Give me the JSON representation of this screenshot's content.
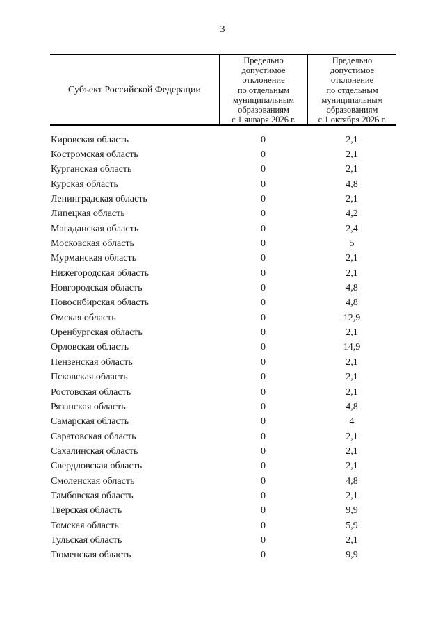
{
  "page_number": "3",
  "table": {
    "header": {
      "region": "Субъект Российской Федерации",
      "january": "Предельно\nдопустимое\nотклонение\nпо отдельным\nмуниципальным\nобразованиям\nс 1 января 2026 г.",
      "october": "Предельно\nдопустимое\nотклонение\nпо отдельным\nмуниципальным\nобразованиям\nс 1 октября 2026 г."
    },
    "rows": [
      {
        "region": "Кировская область",
        "january": "0",
        "october": "2,1"
      },
      {
        "region": "Костромская область",
        "january": "0",
        "october": "2,1"
      },
      {
        "region": "Курганская область",
        "january": "0",
        "october": "2,1"
      },
      {
        "region": "Курская область",
        "january": "0",
        "october": "4,8"
      },
      {
        "region": "Ленинградская область",
        "january": "0",
        "october": "2,1"
      },
      {
        "region": "Липецкая область",
        "january": "0",
        "october": "4,2"
      },
      {
        "region": "Магаданская область",
        "january": "0",
        "october": "2,4"
      },
      {
        "region": "Московская область",
        "january": "0",
        "october": "5"
      },
      {
        "region": "Мурманская область",
        "january": "0",
        "october": "2,1"
      },
      {
        "region": "Нижегородская область",
        "january": "0",
        "october": "2,1"
      },
      {
        "region": "Новгородская область",
        "january": "0",
        "october": "4,8"
      },
      {
        "region": "Новосибирская область",
        "january": "0",
        "october": "4,8"
      },
      {
        "region": "Омская область",
        "january": "0",
        "october": "12,9"
      },
      {
        "region": "Оренбургская область",
        "january": "0",
        "october": "2,1"
      },
      {
        "region": "Орловская область",
        "january": "0",
        "october": "14,9"
      },
      {
        "region": "Пензенская область",
        "january": "0",
        "october": "2,1"
      },
      {
        "region": "Псковская область",
        "january": "0",
        "october": "2,1"
      },
      {
        "region": "Ростовская область",
        "january": "0",
        "october": "2,1"
      },
      {
        "region": "Рязанская область",
        "january": "0",
        "october": "4,8"
      },
      {
        "region": "Самарская область",
        "january": "0",
        "october": "4"
      },
      {
        "region": "Саратовская область",
        "january": "0",
        "october": "2,1"
      },
      {
        "region": "Сахалинская область",
        "january": "0",
        "october": "2,1"
      },
      {
        "region": "Свердловская область",
        "january": "0",
        "october": "2,1"
      },
      {
        "region": "Смоленская область",
        "january": "0",
        "october": "4,8"
      },
      {
        "region": "Тамбовская область",
        "january": "0",
        "october": "2,1"
      },
      {
        "region": "Тверская область",
        "january": "0",
        "october": "9,9"
      },
      {
        "region": "Томская область",
        "january": "0",
        "october": "5,9"
      },
      {
        "region": "Тульская область",
        "january": "0",
        "october": "2,1"
      },
      {
        "region": "Тюменская область",
        "january": "0",
        "october": "9,9"
      }
    ]
  }
}
